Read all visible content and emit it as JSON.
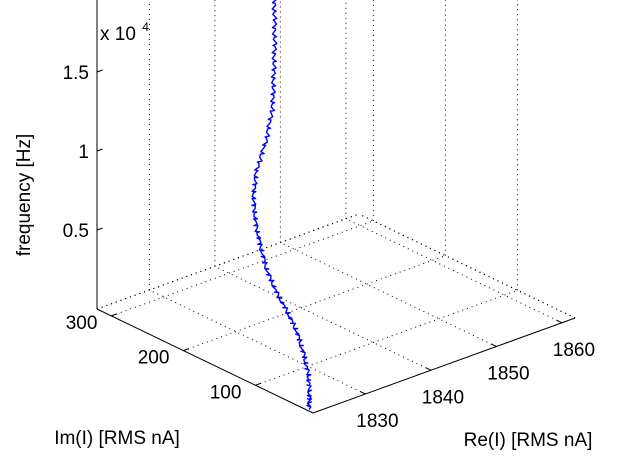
{
  "chart_data": {
    "type": "line",
    "dimensions": "3d",
    "title": "",
    "xlabel": "Re(I) [RMS nA]",
    "ylabel": "Im(I) [RMS nA]",
    "zlabel": "frequency [Hz]",
    "z_exponent_label": "x 10",
    "z_exponent_power": "4",
    "x_ticks": [
      "1830",
      "1840",
      "1850",
      "1860"
    ],
    "y_ticks": [
      "100",
      "200",
      "300"
    ],
    "z_ticks": [
      "0.5",
      "1",
      "1.5"
    ],
    "xlim": [
      1822,
      1862
    ],
    "ylim": [
      20,
      320
    ],
    "zlim": [
      0,
      20000
    ],
    "grid": true,
    "series_color": "#0000ff",
    "series": [
      {
        "x": [
          1822.5,
          1824,
          1825.5,
          1826.5,
          1827,
          1827.2,
          1827.2,
          1827.5,
          1828.3,
          1829.3,
          1830.6,
          1832.8,
          1836,
          1838.7,
          1840.4,
          1842.1,
          1843.6,
          1845,
          1846.3
        ],
        "y": [
          30,
          43,
          58,
          74,
          88,
          103,
          118,
          134,
          150,
          166,
          181,
          197,
          212,
          228,
          242,
          256,
          270,
          283,
          295
        ],
        "z": [
          0,
          300,
          1000,
          1900,
          2900,
          3800,
          4700,
          5700,
          6700,
          7700,
          8800,
          9800,
          11000,
          12300,
          13700,
          15100,
          16600,
          18100,
          19800
        ]
      }
    ]
  }
}
